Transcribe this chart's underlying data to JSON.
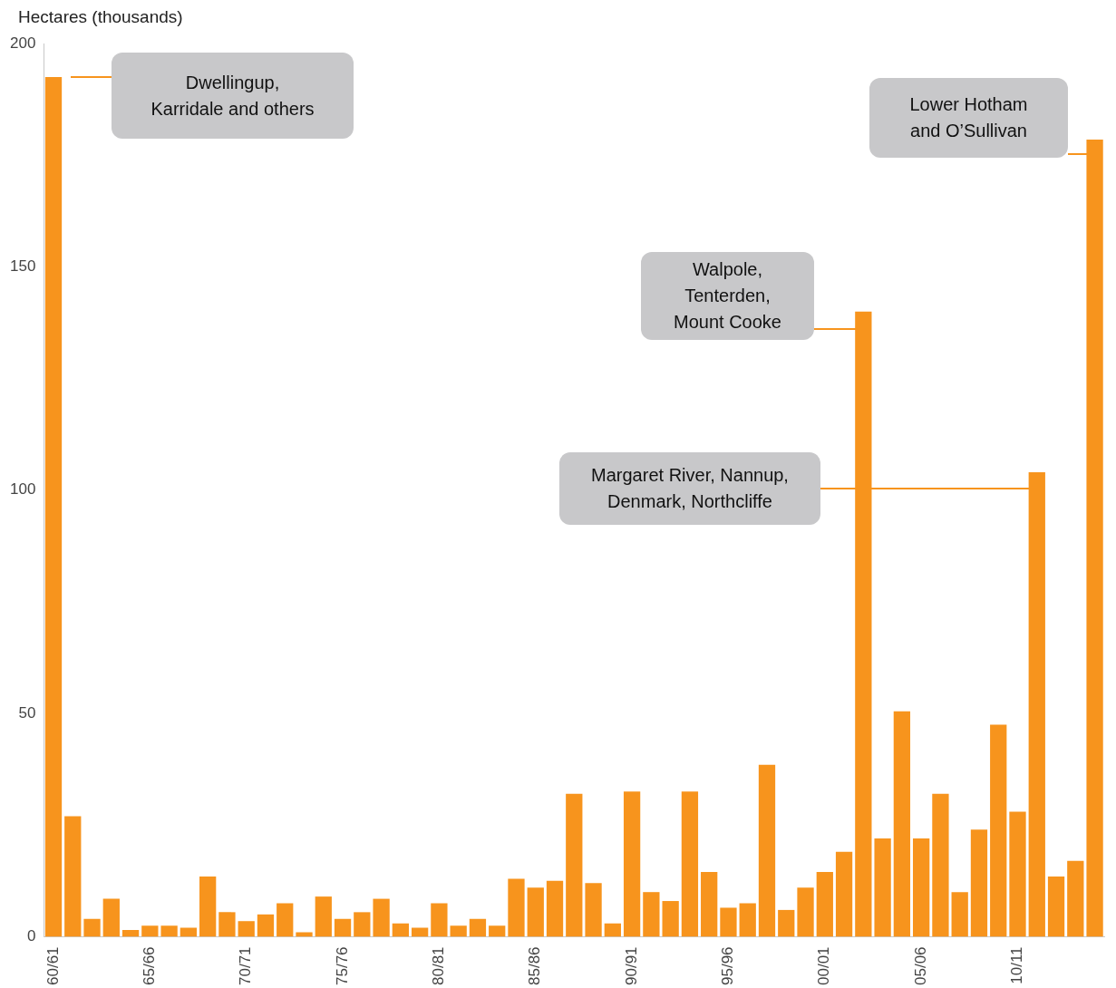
{
  "chart_data": {
    "type": "bar",
    "ylabel": "Hectares (thousands)",
    "categories": [
      "60/61",
      null,
      null,
      null,
      null,
      "65/66",
      null,
      null,
      null,
      null,
      "70/71",
      null,
      null,
      null,
      null,
      "75/76",
      null,
      null,
      null,
      null,
      "80/81",
      null,
      null,
      null,
      null,
      "85/86",
      null,
      null,
      null,
      null,
      "90/91",
      null,
      null,
      null,
      null,
      "95/96",
      null,
      null,
      null,
      null,
      "00/01",
      null,
      null,
      null,
      null,
      "05/06",
      null,
      null,
      null,
      null,
      "10/11",
      null,
      null,
      null,
      null
    ],
    "values": [
      192.5,
      27,
      4,
      8.5,
      1.5,
      2.5,
      2.5,
      2,
      13.5,
      5.5,
      3.5,
      5,
      7.5,
      1,
      9,
      4,
      5.5,
      8.5,
      3,
      2,
      7.5,
      2.5,
      4,
      2.5,
      13,
      11,
      12.5,
      32,
      12,
      3,
      32.5,
      10,
      8,
      32.5,
      14.5,
      6.5,
      7.5,
      38.5,
      6,
      11,
      14.5,
      19,
      140,
      22,
      50.5,
      22,
      32,
      10,
      24,
      47.5,
      28,
      104,
      13.5,
      17,
      178.5
    ],
    "color": "#f7941d",
    "ylim": [
      0,
      200
    ],
    "yticks": [
      0,
      50,
      100,
      150,
      200
    ],
    "grid": false,
    "legend": false,
    "annotations": [
      "Dwellingup, Karridale and others",
      "Lower Hotham and O’Sullivan",
      "Walpole, Tenterden, Mount Cooke",
      "Margaret River, Nannup, Denmark, Northcliffe"
    ]
  }
}
